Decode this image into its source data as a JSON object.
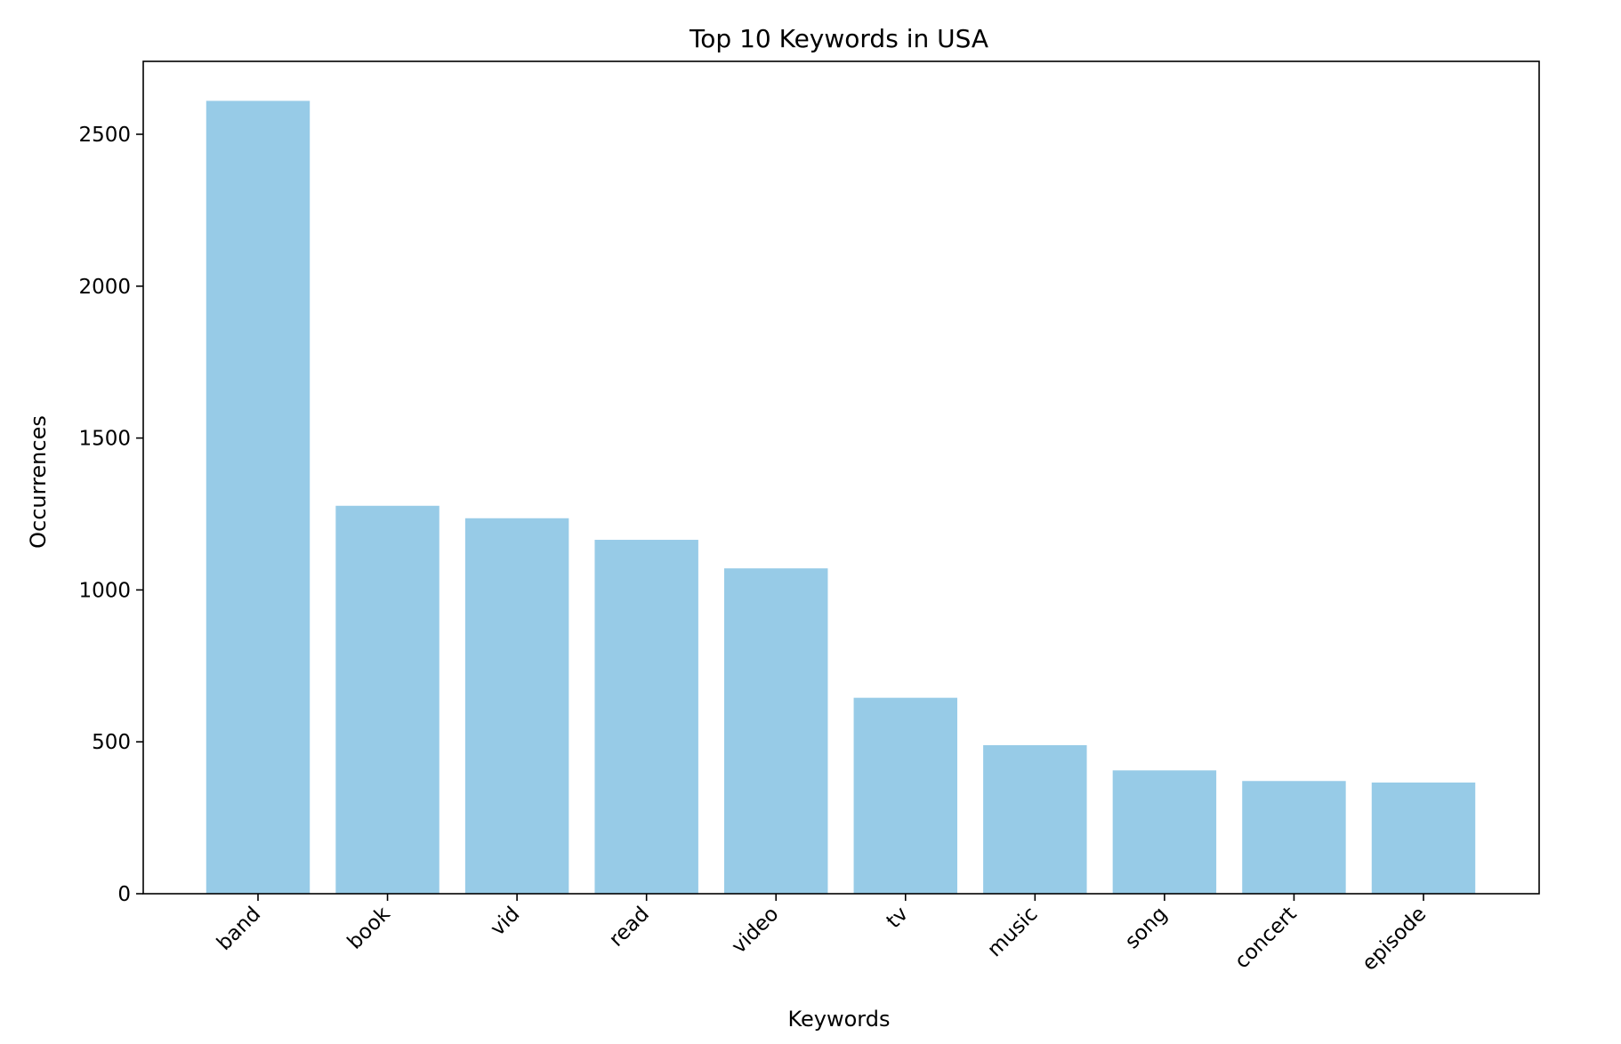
{
  "chart_data": {
    "type": "bar",
    "title": "Top 10 Keywords in USA",
    "xlabel": "Keywords",
    "ylabel": "Occurrences",
    "categories": [
      "band",
      "book",
      "vid",
      "read",
      "video",
      "tv",
      "music",
      "song",
      "concert",
      "episode"
    ],
    "values": [
      2610,
      1277,
      1236,
      1165,
      1071,
      645,
      489,
      406,
      371,
      366
    ],
    "ylim": [
      0,
      2740
    ],
    "yticks": [
      0,
      500,
      1000,
      1500,
      2000,
      2500
    ],
    "grid": false,
    "bar_color": "#97cbe7"
  }
}
